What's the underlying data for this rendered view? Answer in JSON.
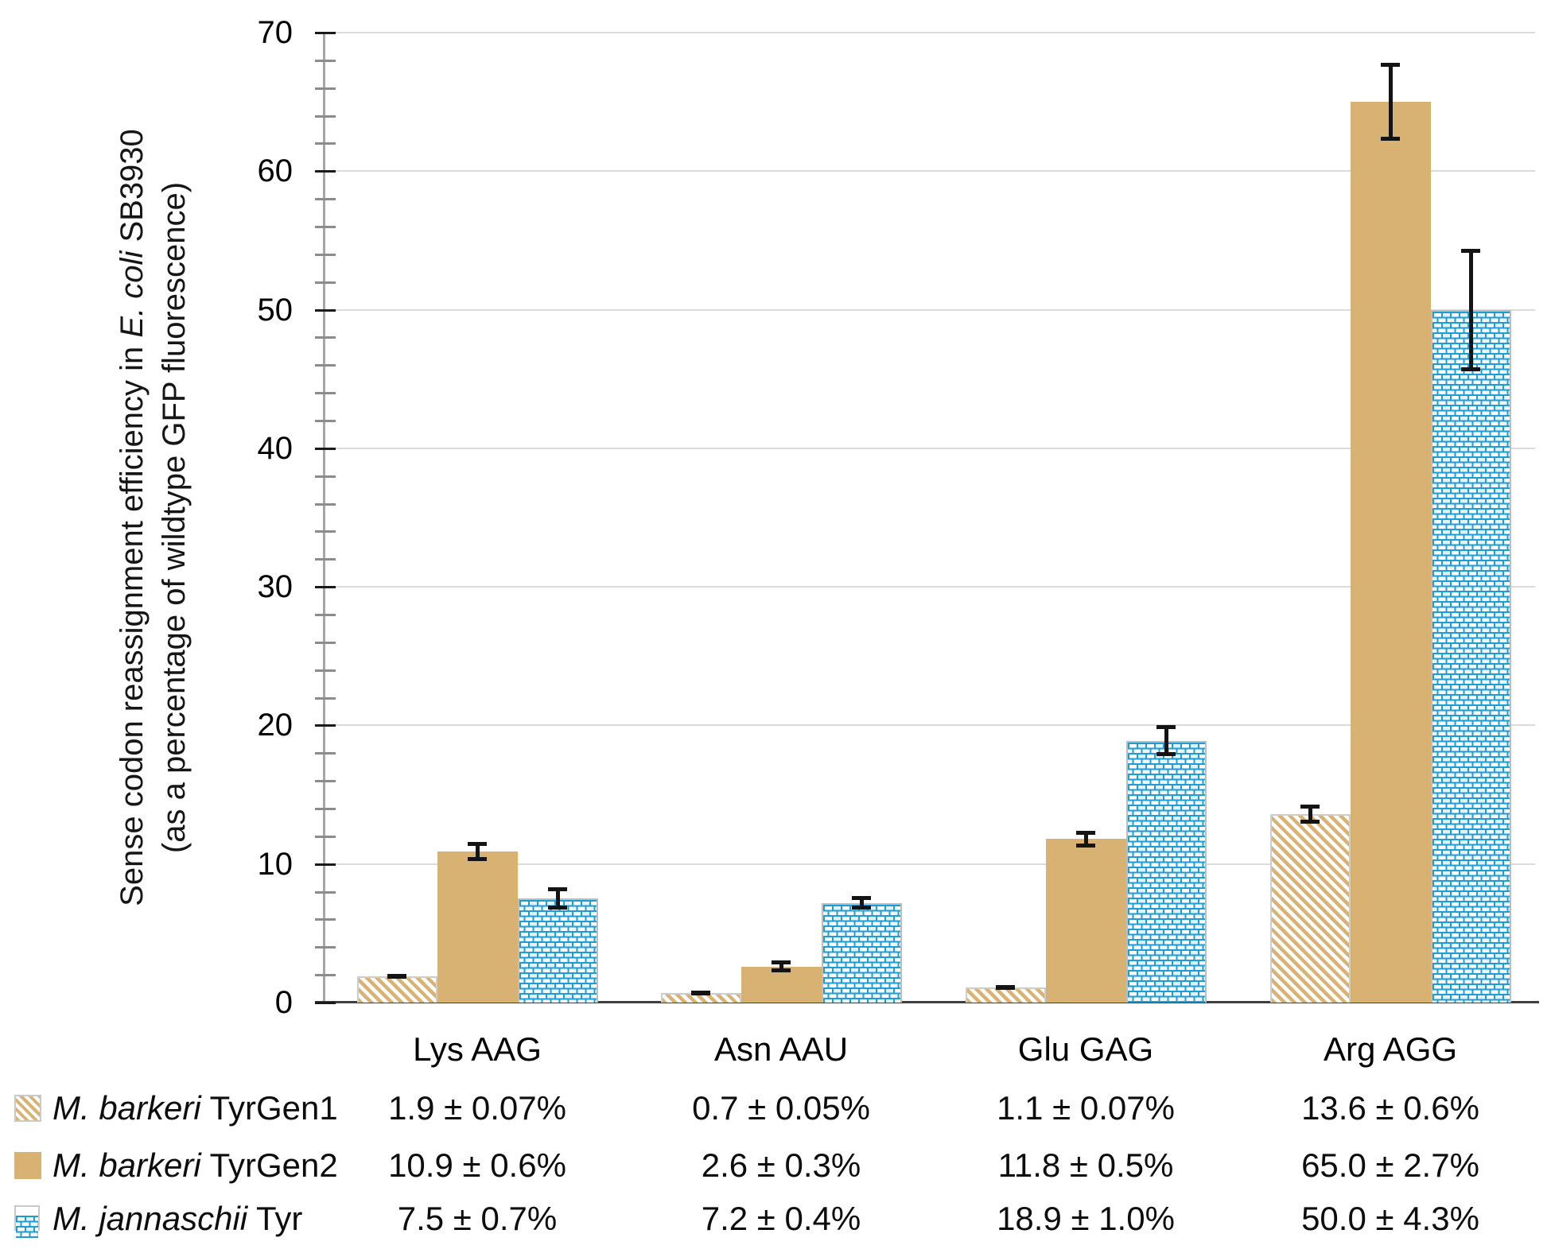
{
  "chart_data": {
    "type": "bar",
    "title": "",
    "y_axis": {
      "label_line1_parts": [
        {
          "text": "Sense codon reassignment efficiency in ",
          "italic": false
        },
        {
          "text": "E. coli",
          "italic": true
        },
        {
          "text": " SB3930",
          "italic": false
        }
      ],
      "label_line2": "(as a percentage of wildtype GFP fluorescence)",
      "ylim": [
        0,
        70
      ],
      "major_tick_step": 10,
      "minor_tick_step": 2,
      "tick_labels": [
        "0",
        "10",
        "20",
        "30",
        "40",
        "50",
        "60",
        "70"
      ],
      "grid": true
    },
    "categories": [
      "Lys AAG",
      "Asn AAU",
      "Glu GAG",
      "Arg AGG"
    ],
    "series": [
      {
        "name_italic": "M. barkeri",
        "name_rest": " TyrGen1",
        "pattern": "diagonal-stripes",
        "values": [
          1.9,
          0.7,
          1.1,
          13.6
        ],
        "errors": [
          0.07,
          0.05,
          0.07,
          0.6
        ],
        "display": [
          "1.9 ± 0.07%",
          "0.7 ± 0.05%",
          "1.1 ± 0.07%",
          "13.6 ± 0.6%"
        ]
      },
      {
        "name_italic": "M. barkeri",
        "name_rest": " TyrGen2",
        "pattern": "solid",
        "values": [
          10.9,
          2.6,
          11.8,
          65.0
        ],
        "errors": [
          0.6,
          0.3,
          0.5,
          2.7
        ],
        "display": [
          "10.9 ± 0.6%",
          "2.6 ± 0.3%",
          "11.8 ± 0.5%",
          "65.0 ± 2.7%"
        ]
      },
      {
        "name_italic": "M. jannaschii",
        "name_rest": " Tyr",
        "pattern": "brick",
        "values": [
          7.5,
          7.2,
          18.9,
          50.0
        ],
        "errors": [
          0.7,
          0.4,
          1.0,
          4.3
        ],
        "display": [
          "7.5 ± 0.7%",
          "7.2 ± 0.4%",
          "18.9 ± 1.0%",
          "50.0 ± 4.3%"
        ]
      }
    ],
    "legend_position": "bottom-table",
    "colors": {
      "bar_tan": "#D7B272",
      "bar_blue_brick": "#1E9CD4",
      "gridline": "#DBDBDB",
      "y_axis_line": "#A6A6A6",
      "baseline": "#3F3F3F",
      "error_bar": "#141414",
      "text": "#000000"
    }
  }
}
